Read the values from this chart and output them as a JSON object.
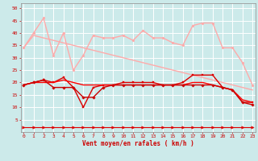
{
  "title": "",
  "xlabel": "Vent moyen/en rafales ( km/h )",
  "ylabel": "",
  "background_color": "#cceaea",
  "grid_color": "#ffffff",
  "x": [
    0,
    1,
    2,
    3,
    4,
    5,
    6,
    7,
    8,
    9,
    10,
    11,
    12,
    13,
    14,
    15,
    16,
    17,
    18,
    19,
    20,
    21,
    22,
    23
  ],
  "lines": [
    {
      "y": [
        34,
        40,
        46,
        31,
        40,
        25,
        31,
        39,
        38,
        38,
        39,
        37,
        41,
        38,
        38,
        36,
        35,
        43,
        44,
        44,
        34,
        34,
        28,
        19
      ],
      "color": "#ffaaaa",
      "lw": 1.0,
      "marker": "o",
      "ms": 2.0
    },
    {
      "y": [
        34,
        39,
        38,
        37,
        36,
        35,
        34,
        33,
        32,
        31,
        30,
        29,
        28,
        27,
        26,
        25,
        24,
        23,
        22,
        21,
        20,
        19,
        18,
        17
      ],
      "color": "#ffaaaa",
      "lw": 1.0,
      "marker": null,
      "ms": 0
    },
    {
      "y": [
        19,
        20,
        21,
        20,
        22,
        18,
        10,
        18,
        19,
        19,
        20,
        20,
        20,
        20,
        19,
        19,
        20,
        23,
        23,
        23,
        18,
        17,
        12,
        12
      ],
      "color": "#dd0000",
      "lw": 1.0,
      "marker": "s",
      "ms": 2.0
    },
    {
      "y": [
        19,
        20,
        20,
        20,
        21,
        20,
        19,
        19,
        19,
        19,
        19,
        19,
        19,
        19,
        19,
        19,
        19,
        20,
        20,
        19,
        18,
        17,
        13,
        12
      ],
      "color": "#ff0000",
      "lw": 1.0,
      "marker": null,
      "ms": 0
    },
    {
      "y": [
        19,
        20,
        21,
        18,
        18,
        18,
        14,
        14,
        18,
        19,
        19,
        19,
        19,
        19,
        19,
        19,
        19,
        19,
        19,
        19,
        18,
        17,
        12,
        11
      ],
      "color": "#cc0000",
      "lw": 1.0,
      "marker": "D",
      "ms": 1.8
    },
    {
      "y": [
        2,
        2,
        2,
        2,
        2,
        2,
        2,
        2,
        2,
        2,
        2,
        2,
        2,
        2,
        2,
        2,
        2,
        2,
        2,
        2,
        2,
        2,
        2,
        2
      ],
      "color": "#dd0000",
      "lw": 0.8,
      "marker": ">",
      "ms": 2.5
    }
  ],
  "ylim": [
    0,
    52
  ],
  "xlim": [
    -0.3,
    23.3
  ],
  "yticks": [
    5,
    10,
    15,
    20,
    25,
    30,
    35,
    40,
    45,
    50
  ],
  "xticks": [
    0,
    1,
    2,
    3,
    4,
    5,
    6,
    7,
    8,
    9,
    10,
    11,
    12,
    13,
    14,
    15,
    16,
    17,
    18,
    19,
    20,
    21,
    22,
    23
  ],
  "tick_color": "#cc0000",
  "label_color": "#cc0000",
  "axis_color": "#999999",
  "tick_fontsize": 4.5,
  "xlabel_fontsize": 5.5
}
